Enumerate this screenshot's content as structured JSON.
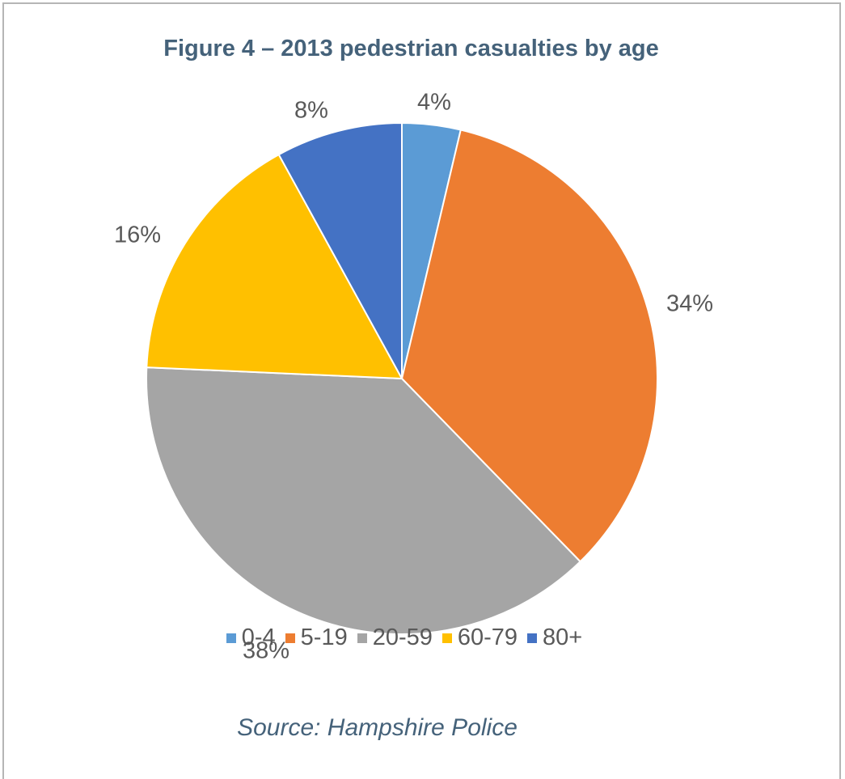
{
  "title": "Figure 4 – 2013 pedestrian casualties by age",
  "source": "Source: Hampshire Police",
  "chart_data": {
    "type": "pie",
    "title": "Figure 4 – 2013 pedestrian casualties by age",
    "categories": [
      "0-4",
      "5-19",
      "20-59",
      "60-79",
      "80+"
    ],
    "values": [
      3.7,
      34,
      38,
      16.3,
      8
    ],
    "data_labels": [
      "4%",
      "34%",
      "38%",
      "16%",
      "8%"
    ],
    "colors": [
      "#5b9bd5",
      "#ed7d31",
      "#a5a5a5",
      "#ffc000",
      "#4472c4"
    ],
    "start_angle_deg": 0,
    "direction": "clockwise",
    "legend_position": "bottom"
  }
}
